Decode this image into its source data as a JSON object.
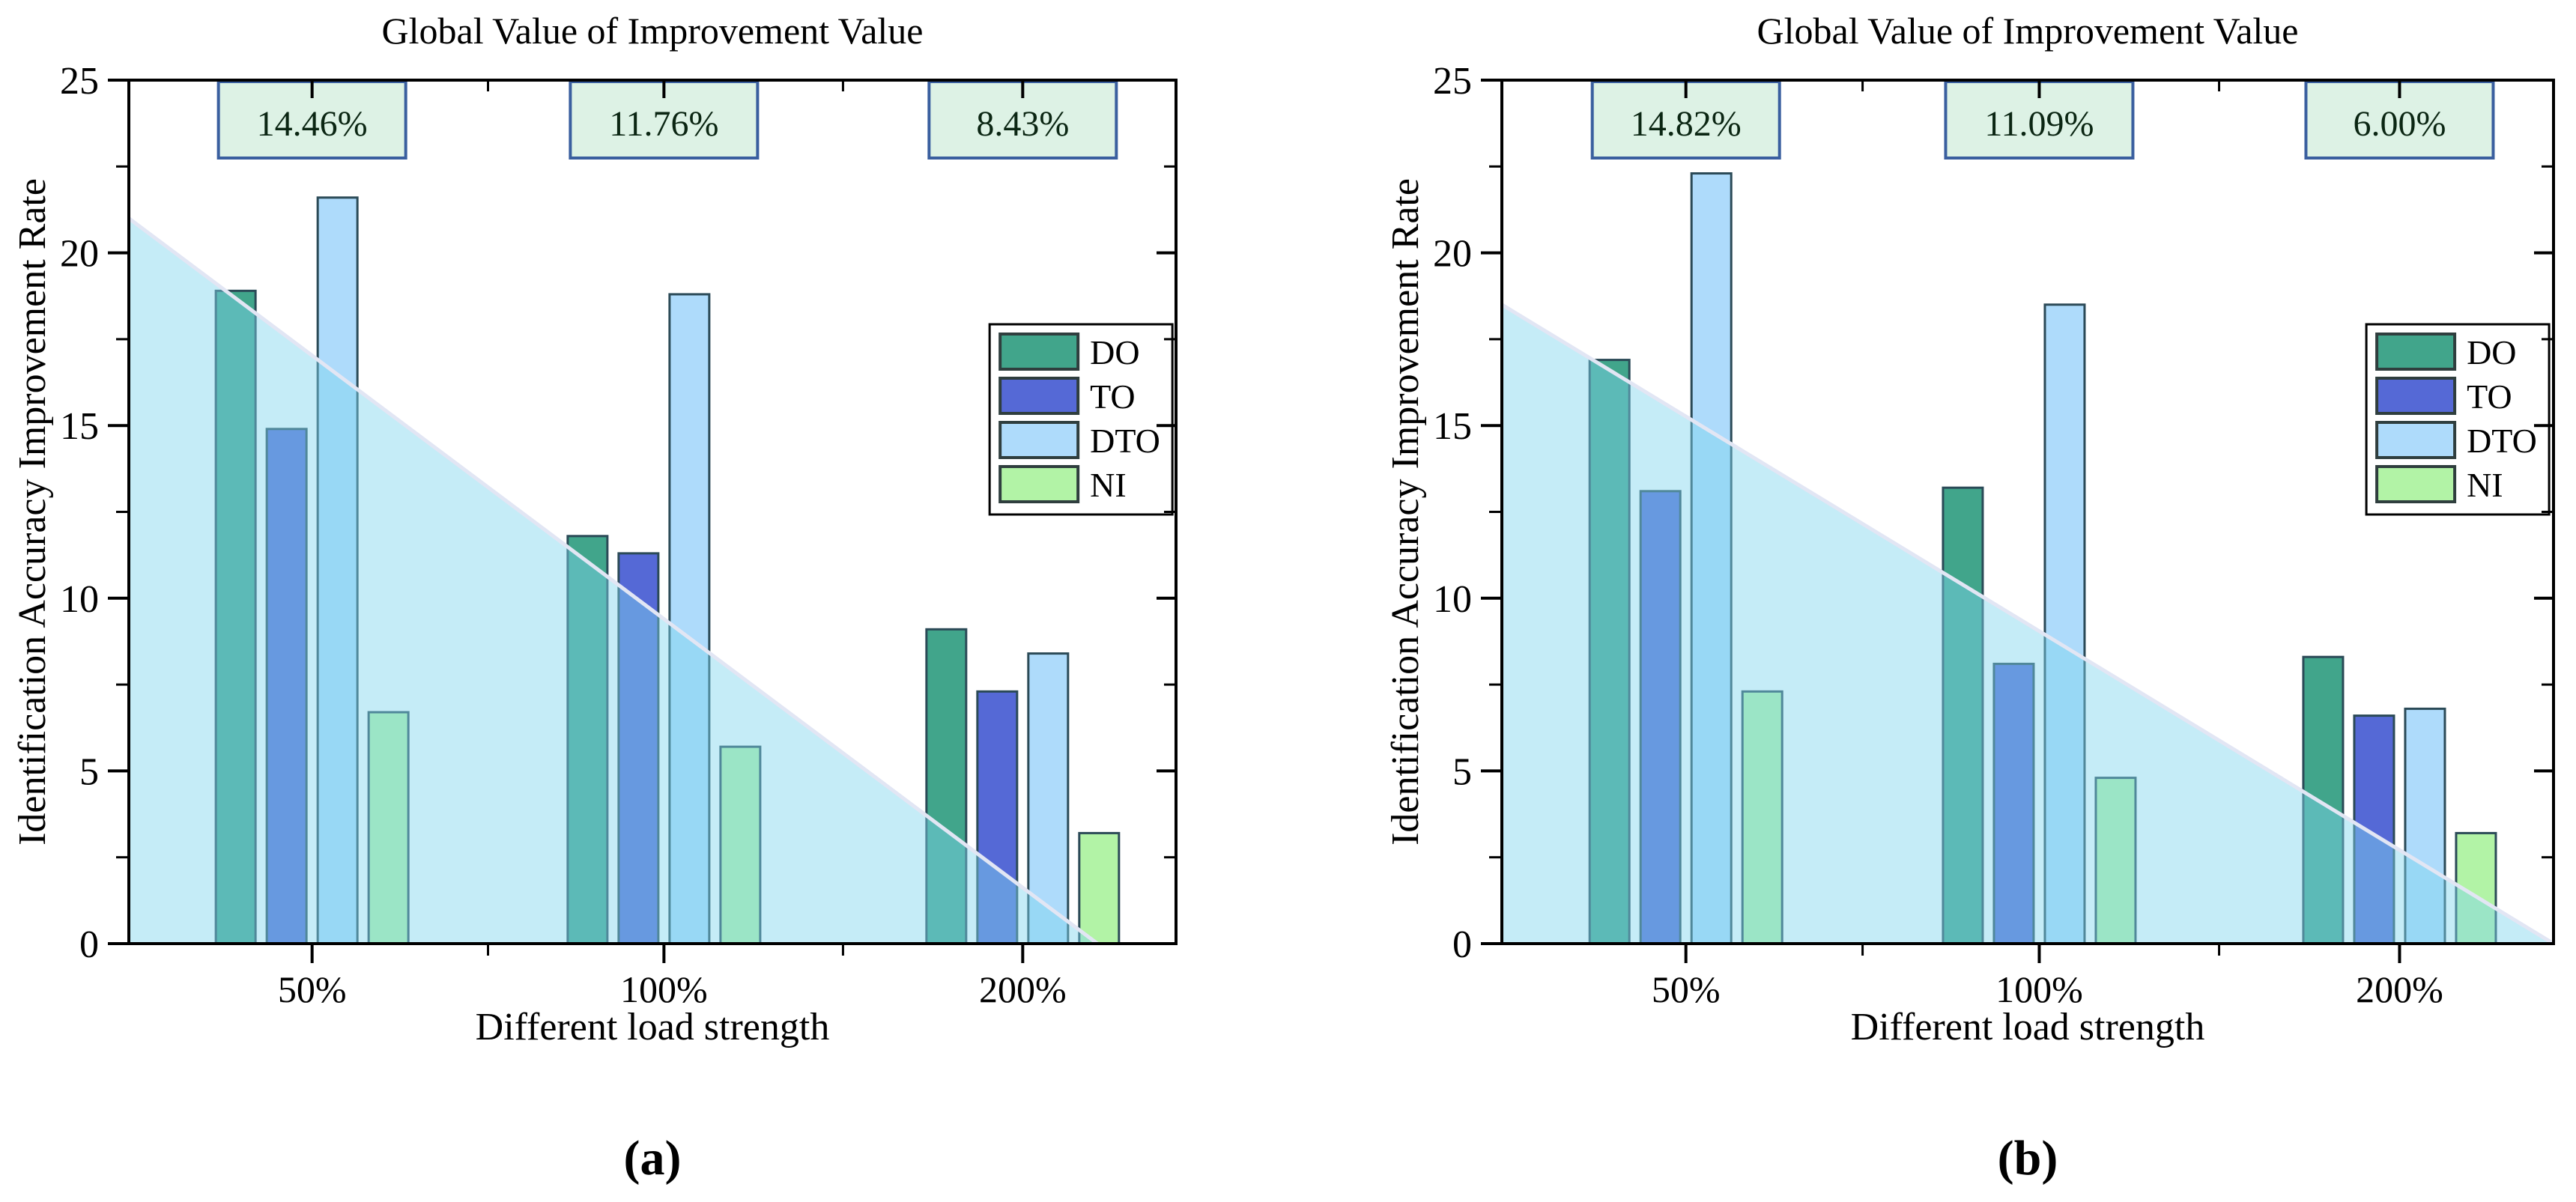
{
  "page": {
    "background": "#ffffff"
  },
  "styles": {
    "annotation_fill": "#ddf2e5",
    "annotation_border": "#3a5f9f",
    "annotation_text": "#0b2613",
    "bar_edge": "#2b4a57",
    "legend_swatch_edge": "#2f3e3e",
    "shade_color": "rgba(127,213,238,0.45)",
    "trend_line_color": "#e2e6f4",
    "axis_color": "#000000",
    "text_color": "#000000"
  },
  "chart_data": [
    {
      "type": "bar",
      "panel_label": "(a)",
      "title": "Global Value of Improvement Value",
      "xlabel": "Different load strength",
      "ylabel": "Identification Accuracy Improvement Rate",
      "categories": [
        "50%",
        "100%",
        "200%"
      ],
      "series": [
        {
          "name": "DO",
          "color": "#41a58b",
          "values": [
            18.9,
            11.8,
            9.1
          ]
        },
        {
          "name": "TO",
          "color": "#5569d6",
          "values": [
            14.9,
            11.3,
            7.3
          ]
        },
        {
          "name": "DTO",
          "color": "#aedbfb",
          "values": [
            21.6,
            18.8,
            8.4
          ]
        },
        {
          "name": "NI",
          "color": "#b2f3a6",
          "values": [
            6.7,
            5.7,
            3.2
          ]
        }
      ],
      "annotations": [
        {
          "label": "14.46%"
        },
        {
          "label": "11.76%"
        },
        {
          "label": "8.43%"
        }
      ],
      "trend_area": {
        "start_value": 21.0,
        "end_fraction": 0.925
      },
      "ylim": [
        0,
        25
      ],
      "yticks_major": [
        0,
        5,
        10,
        15,
        20,
        25
      ],
      "yticks_minor": [
        2.5,
        7.5,
        12.5,
        17.5,
        22.5
      ],
      "legend": {
        "position": "center-right"
      },
      "grid": false
    },
    {
      "type": "bar",
      "panel_label": "(b)",
      "title": "Global Value of Improvement Value",
      "xlabel": "Different load strength",
      "ylabel": "Identification Accuracy Improvement Rate",
      "categories": [
        "50%",
        "100%",
        "200%"
      ],
      "series": [
        {
          "name": "DO",
          "color": "#41a58b",
          "values": [
            16.9,
            13.2,
            8.3
          ]
        },
        {
          "name": "TO",
          "color": "#5569d6",
          "values": [
            13.1,
            8.1,
            6.6
          ]
        },
        {
          "name": "DTO",
          "color": "#aedbfb",
          "values": [
            22.3,
            18.5,
            6.8
          ]
        },
        {
          "name": "NI",
          "color": "#b2f3a6",
          "values": [
            7.3,
            4.8,
            3.2
          ]
        }
      ],
      "annotations": [
        {
          "label": "14.82%"
        },
        {
          "label": "11.09%"
        },
        {
          "label": "6.00%"
        }
      ],
      "trend_area": {
        "start_value": 18.5,
        "end_fraction": 1.0
      },
      "ylim": [
        0,
        25
      ],
      "yticks_major": [
        0,
        5,
        10,
        15,
        20,
        25
      ],
      "yticks_minor": [
        2.5,
        7.5,
        12.5,
        17.5,
        22.5
      ],
      "legend": {
        "position": "center-right"
      },
      "grid": false
    }
  ]
}
